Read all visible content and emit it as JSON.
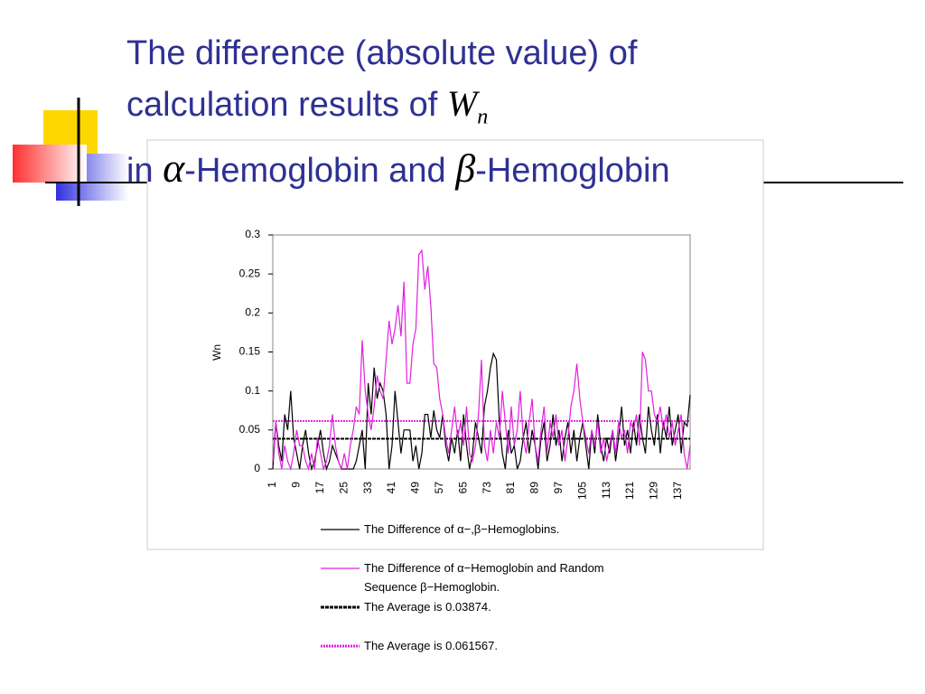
{
  "slide": {
    "title_line1": "The difference (absolute value) of",
    "title_line2": "calculation results of",
    "symbol_w": "W",
    "symbol_n": "n",
    "title_in": "in",
    "symbol_alpha": "α",
    "title_mid": "-Hemoglobin and",
    "symbol_beta": "β",
    "title_end": "-Hemoglobin"
  },
  "chart_data": {
    "type": "line",
    "ylabel": "Wn",
    "categories": [
      "1",
      null,
      null,
      null,
      null,
      null,
      null,
      null,
      "9",
      null,
      null,
      null,
      null,
      null,
      null,
      null,
      "17",
      null,
      null,
      null,
      null,
      null,
      null,
      null,
      "25",
      null,
      null,
      null,
      null,
      null,
      null,
      null,
      "33",
      null,
      null,
      null,
      null,
      null,
      null,
      null,
      "41",
      null,
      null,
      null,
      null,
      null,
      null,
      null,
      "49",
      null,
      null,
      null,
      null,
      null,
      null,
      null,
      "57",
      null,
      null,
      null,
      null,
      null,
      null,
      null,
      "65",
      null,
      null,
      null,
      null,
      null,
      null,
      null,
      "73",
      null,
      null,
      null,
      null,
      null,
      null,
      null,
      "81",
      null,
      null,
      null,
      null,
      null,
      null,
      null,
      "89",
      null,
      null,
      null,
      null,
      null,
      null,
      null,
      "97",
      null,
      null,
      null,
      null,
      null,
      null,
      null,
      "105",
      null,
      null,
      null,
      null,
      null,
      null,
      null,
      "113",
      null,
      null,
      null,
      null,
      null,
      null,
      null,
      "121",
      null,
      null,
      null,
      null,
      null,
      null,
      null,
      "129",
      null,
      null,
      null,
      null,
      null,
      null,
      null,
      "137",
      null,
      null,
      null,
      null
    ],
    "ylim": [
      0,
      0.3
    ],
    "yticks": [
      0,
      0.05,
      0.1,
      0.15,
      0.2,
      0.25,
      0.3
    ],
    "series": [
      {
        "name": "The Difference of α−,β−Hemoglobins.",
        "color": "#000000",
        "values": [
          0,
          0.06,
          0.03,
          0.01,
          0.07,
          0.05,
          0.1,
          0.04,
          0.02,
          0,
          0.03,
          0.05,
          0.02,
          0,
          0.01,
          0.03,
          0.05,
          0.02,
          0,
          0.01,
          0.03,
          0.02,
          0.01,
          0,
          0,
          0,
          0,
          0,
          0.01,
          0.03,
          0.05,
          0,
          0.11,
          0.07,
          0.13,
          0.09,
          0.11,
          0.1,
          0.07,
          0,
          0.03,
          0.1,
          0.06,
          0.02,
          0.05,
          0.05,
          0.05,
          0.01,
          0.03,
          0,
          0.02,
          0.07,
          0.07,
          0.04,
          0.075,
          0.05,
          0.04,
          0.07,
          0.03,
          0.01,
          0.04,
          0.02,
          0.05,
          0.01,
          0.07,
          0.03,
          0,
          0.02,
          0.06,
          0.04,
          0.02,
          0.08,
          0.1,
          0.13,
          0.148,
          0.14,
          0.06,
          0.02,
          0,
          0.05,
          0.02,
          0.03,
          0,
          0.01,
          0.04,
          0.06,
          0.02,
          0.05,
          0.03,
          0,
          0.04,
          0.06,
          0.01,
          0.03,
          0.07,
          0.03,
          0.05,
          0.01,
          0.04,
          0.06,
          0.02,
          0.05,
          0.01,
          0.04,
          0.06,
          0.03,
          0,
          0.05,
          0.02,
          0.07,
          0.03,
          0.01,
          0.04,
          0.02,
          0.05,
          0.01,
          0.04,
          0.08,
          0.03,
          0.05,
          0.02,
          0.06,
          0.03,
          0.07,
          0.04,
          0.02,
          0.08,
          0.05,
          0.03,
          0.07,
          0.02,
          0.06,
          0.04,
          0.08,
          0.03,
          0.05,
          0.07,
          0.02,
          0.06,
          0.055,
          0.095
        ]
      },
      {
        "name": "The Difference of α−Hemoglobin and Random Sequence β−Hemoglobin.",
        "color": "#e020e0",
        "values": [
          0.01,
          0.06,
          0.02,
          0,
          0.03,
          0.01,
          0,
          0.02,
          0.05,
          0.03,
          0.03,
          0.01,
          0,
          0.02,
          0,
          0.04,
          0.02,
          0,
          0.01,
          0.03,
          0.07,
          0.03,
          0.01,
          0,
          0.02,
          0,
          0.03,
          0.05,
          0.08,
          0.07,
          0.165,
          0.1,
          0.07,
          0.05,
          0.08,
          0.12,
          0.1,
          0.09,
          0.14,
          0.19,
          0.16,
          0.18,
          0.21,
          0.17,
          0.24,
          0.11,
          0.11,
          0.16,
          0.18,
          0.275,
          0.28,
          0.23,
          0.26,
          0.21,
          0.135,
          0.13,
          0.09,
          0.07,
          0.04,
          0.02,
          0.05,
          0.08,
          0.04,
          0.06,
          0.03,
          0.08,
          0.02,
          0.01,
          0.03,
          0.07,
          0.14,
          0.03,
          0.01,
          0.05,
          0.02,
          0.06,
          0.04,
          0.1,
          0.06,
          0.02,
          0.08,
          0.03,
          0.05,
          0.1,
          0.04,
          0.02,
          0.06,
          0.09,
          0.03,
          0.01,
          0.05,
          0.08,
          0.02,
          0.06,
          0.04,
          0.07,
          0.03,
          0.05,
          0.01,
          0.04,
          0.08,
          0.1,
          0.135,
          0.09,
          0.06,
          0.04,
          0.02,
          0.05,
          0.03,
          0.06,
          0.02,
          0.04,
          0.01,
          0.03,
          0.05,
          0.02,
          0.06,
          0.04,
          0.05,
          0.02,
          0.06,
          0.05,
          0.07,
          0.03,
          0.15,
          0.14,
          0.1,
          0.1,
          0.07,
          0.06,
          0.08,
          0.05,
          0.07,
          0.04,
          0.06,
          0.03,
          0.05,
          0.07,
          0.02,
          0,
          0.03
        ]
      }
    ],
    "reference_lines": [
      {
        "name": "The Average is 0.03874.",
        "value": 0.03874,
        "color": "#000000",
        "style": "dashed"
      },
      {
        "name": "The Average is 0.061567.",
        "value": 0.061567,
        "color": "#e020e0",
        "style": "dotted"
      }
    ]
  }
}
